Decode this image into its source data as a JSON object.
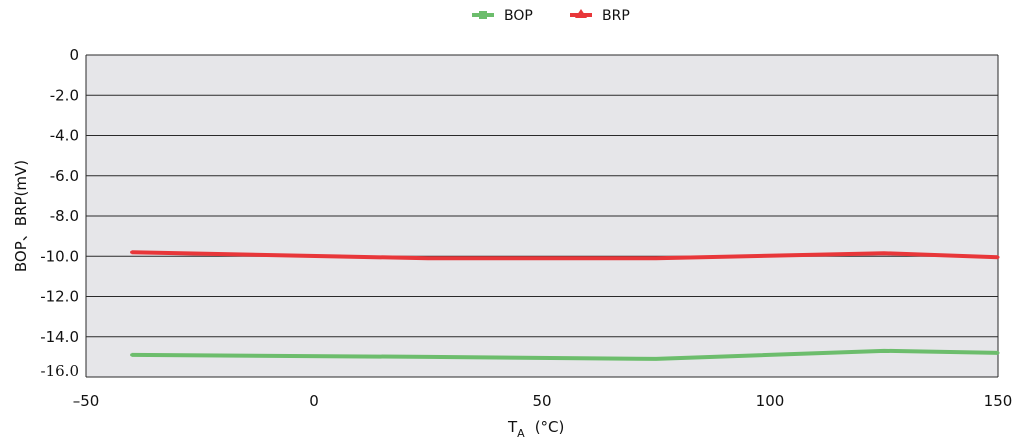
{
  "chart_data": {
    "type": "line",
    "title": "",
    "xlabel": "T",
    "xlabel_subscript": "A",
    "xlabel_unit": "(°C)",
    "ylabel": "BOP、BRP(mV)",
    "xlim": [
      -50,
      150
    ],
    "ylim": [
      -16.0,
      0
    ],
    "x_ticks": [
      -50,
      0,
      50,
      100,
      150
    ],
    "x_tick_labels": [
      "–50",
      "0",
      "50",
      "100",
      "150"
    ],
    "y_ticks": [
      0,
      -2.0,
      -4.0,
      -6.0,
      -8.0,
      -10.0,
      -12.0,
      -14.0,
      -16.0
    ],
    "y_tick_labels": [
      "0",
      "-2.0",
      "-4.0",
      "-6.0",
      "-8.0",
      "-10.0",
      "-12.0",
      "-14.0",
      "-16.0"
    ],
    "grid": true,
    "legend_position": "top-center",
    "series": [
      {
        "name": "BOP",
        "color": "#6cbd6c",
        "marker": "square",
        "x": [
          -40,
          25,
          75,
          125,
          150
        ],
        "values": [
          -14.9,
          -15.0,
          -15.1,
          -14.7,
          -14.8
        ]
      },
      {
        "name": "BRP",
        "color": "#e8373a",
        "marker": "triangle",
        "x": [
          -40,
          25,
          75,
          125,
          150
        ],
        "values": [
          -9.8,
          -10.1,
          -10.1,
          -9.85,
          -10.05
        ]
      }
    ]
  }
}
